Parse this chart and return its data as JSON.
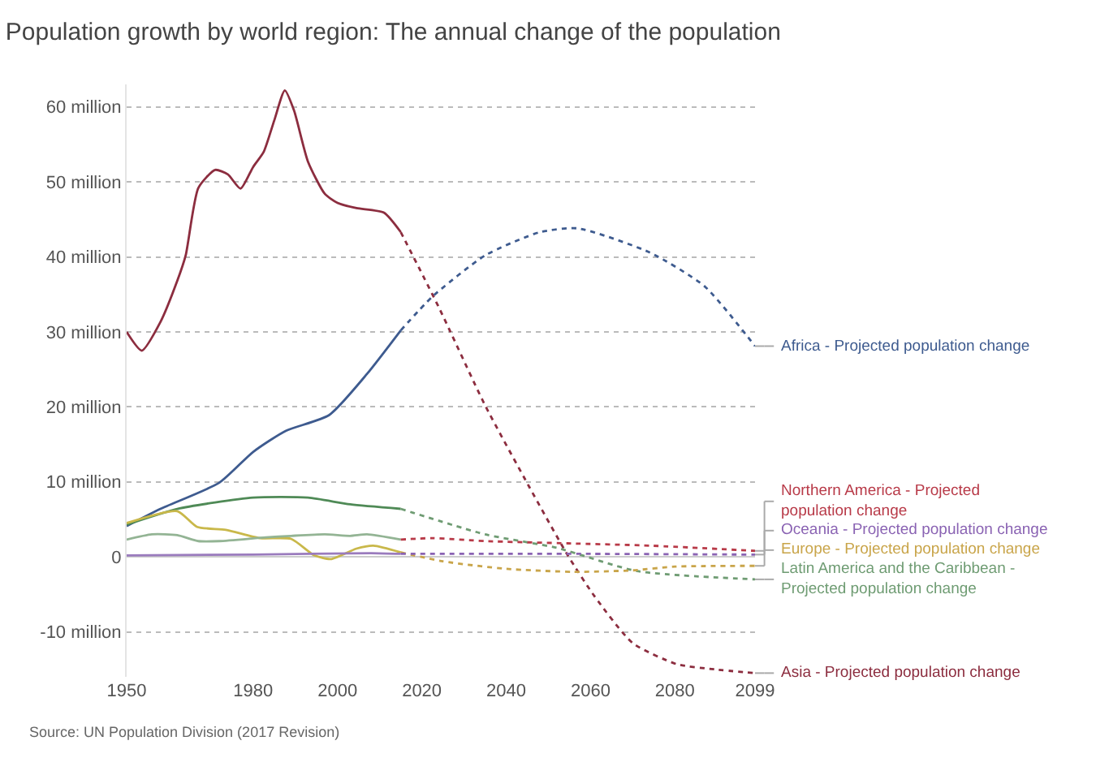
{
  "chart_data": {
    "type": "line",
    "title": "Population growth by world region: The annual change of the population",
    "annotations": [
      "Source: UN Population Division (2017 Revision)"
    ],
    "xlim": [
      1950,
      2099
    ],
    "xticks": [
      1950,
      1980,
      2000,
      2020,
      2040,
      2060,
      2080,
      2099
    ],
    "ylim": [
      -16,
      63
    ],
    "yticks": [
      {
        "value": -10,
        "label": "-10 million"
      },
      0,
      {
        "value": 10,
        "label": "10 million"
      },
      {
        "value": 20,
        "label": "20 million"
      },
      {
        "value": 30,
        "label": "30 million"
      },
      {
        "value": 40,
        "label": "40 million"
      },
      {
        "value": 50,
        "label": "50 million"
      },
      {
        "value": 60,
        "label": "60 million"
      }
    ],
    "grid": "y",
    "legend": false,
    "marker": "none",
    "series": [
      {
        "color": "#8c2d3f",
        "line_style": "solid",
        "x": [
          1950,
          1953.6,
          1958,
          1962,
          1964,
          1967,
          1971,
          1974,
          1977,
          1980,
          1982.5,
          1985,
          1987.5,
          1989.7,
          1993,
          1997,
          2000,
          2004.5,
          2011,
          2015
        ],
        "values": [
          30.0,
          27.5,
          31.3,
          36.8,
          40.2,
          49.2,
          51.6,
          51.0,
          49.1,
          52.0,
          54.0,
          58.2,
          62.2,
          59.5,
          52.7,
          48.4,
          47.2,
          46.5,
          45.9,
          43.3
        ]
      },
      {
        "name": "Asia - Projected population change",
        "color": "#8c2d3f",
        "line_style": "dotted",
        "x": [
          2015,
          2024,
          2035,
          2045.5,
          2054.6,
          2061,
          2070,
          2080.4,
          2089.4,
          2099
        ],
        "values": [
          43.3,
          33.3,
          20.2,
          9.3,
          0.2,
          -5.3,
          -11.5,
          -14.3,
          -15.0,
          -15.5
        ]
      },
      {
        "color": "#3e5b8f",
        "line_style": "solid",
        "x": [
          1950,
          1958,
          1972,
          1980,
          1987.7,
          1998,
          2007,
          2015
        ],
        "values": [
          4.1,
          6.4,
          9.9,
          14.0,
          16.8,
          18.9,
          24.4,
          30.2
        ]
      },
      {
        "name": "Africa - Projected population change",
        "color": "#3e5b8f",
        "line_style": "dotted",
        "x": [
          2015,
          2022.5,
          2035,
          2048,
          2057,
          2074,
          2087,
          2099
        ],
        "values": [
          30.2,
          34.7,
          40.2,
          43.3,
          43.8,
          40.6,
          36.1,
          28.1
        ]
      },
      {
        "color": "#4f8a56",
        "line_style": "solid",
        "x": [
          1950,
          1962,
          1980,
          1993,
          2003,
          2015
        ],
        "values": [
          4.3,
          6.4,
          7.9,
          7.9,
          7.0,
          6.4
        ]
      },
      {
        "name": "Latin America and the Caribbean - Projected population change",
        "color": "#6f9c73",
        "line_style": "dotted",
        "x": [
          2015,
          2035,
          2052,
          2071,
          2099
        ],
        "values": [
          6.4,
          3.0,
          1.2,
          -1.9,
          -3.0
        ]
      },
      {
        "color": "#c9b84a",
        "line_style": "solid",
        "x": [
          1950,
          1962,
          1966.7,
          1973.5,
          1981.6,
          1989,
          1994.5,
          1998.4,
          2004.5,
          2008.5,
          2015
        ],
        "values": [
          4.5,
          6.1,
          4.0,
          3.6,
          2.5,
          2.4,
          0.2,
          -0.3,
          1.1,
          1.5,
          0.6
        ]
      },
      {
        "name": "Europe - Projected population change",
        "color": "#c9a54a",
        "line_style": "dotted",
        "x": [
          2015,
          2025,
          2040,
          2056,
          2070,
          2080,
          2099
        ],
        "values": [
          0.6,
          -0.6,
          -1.6,
          -2.0,
          -1.8,
          -1.3,
          -1.2
        ]
      },
      {
        "color": "#93b494",
        "line_style": "solid",
        "x": [
          1950,
          1956,
          1962,
          1967,
          1972,
          1983,
          1989,
          1997,
          2003,
          2007,
          2015
        ],
        "values": [
          2.3,
          3.0,
          2.9,
          2.1,
          2.1,
          2.6,
          2.8,
          3.0,
          2.8,
          3.0,
          2.3
        ]
      },
      {
        "name": "Northern America - Projected population change",
        "color": "#b83a48",
        "line_style": "dotted",
        "x": [
          2015,
          2022.5,
          2035,
          2054.6,
          2074,
          2099
        ],
        "values": [
          2.3,
          2.5,
          2.1,
          1.8,
          1.5,
          0.8
        ]
      },
      {
        "color": "#9a7bbd",
        "line_style": "solid",
        "x": [
          1950,
          1980,
          2008,
          2015
        ],
        "values": [
          0.2,
          0.3,
          0.5,
          0.4
        ]
      },
      {
        "name": "Oceania - Projected population change",
        "color": "#8a63b3",
        "line_style": "dotted",
        "x": [
          2015,
          2060,
          2099
        ],
        "values": [
          0.4,
          0.4,
          0.3
        ]
      }
    ]
  }
}
